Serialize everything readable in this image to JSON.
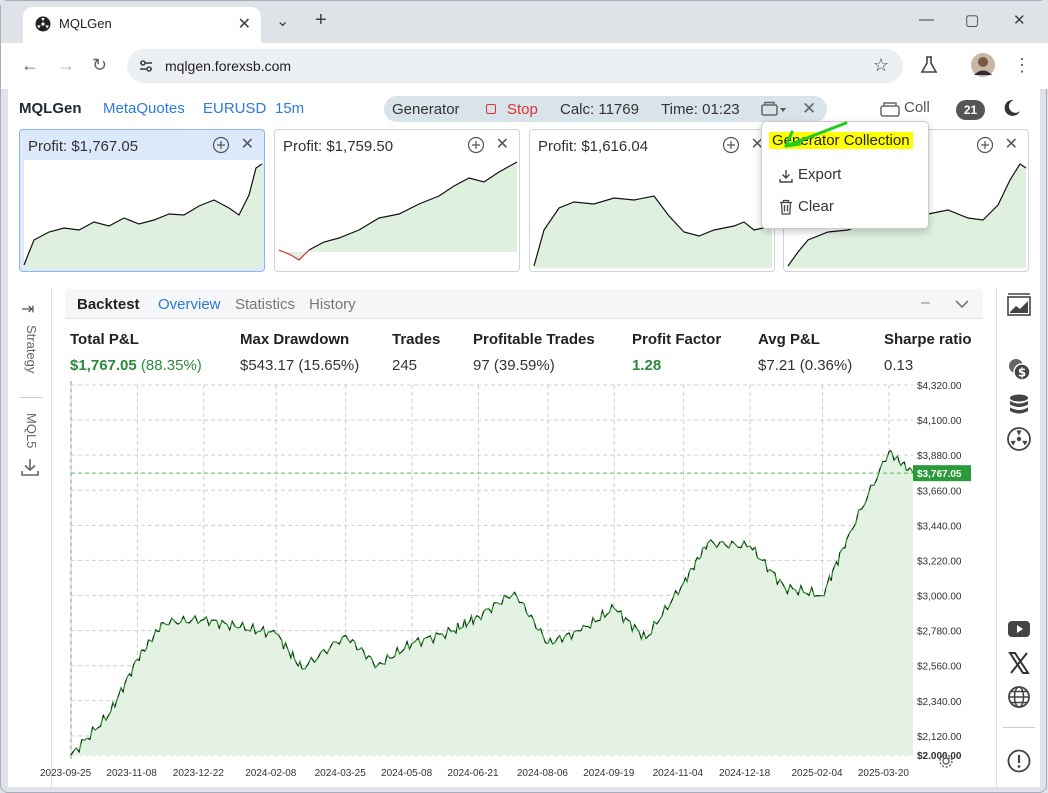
{
  "browser": {
    "tab_title": "MQLGen",
    "new_tab": "+",
    "url": "mqlgen.forexsb.com"
  },
  "app": {
    "brand": "MQLGen",
    "links": [
      "MetaQuotes",
      "EURUSD",
      "15m"
    ],
    "generator": {
      "label": "Generator",
      "stop": "Stop",
      "calc": "Calc: 11769",
      "time": "Time: 01:23"
    },
    "coll_label": "Coll",
    "coll_count": "21"
  },
  "cards": [
    {
      "title": "Profit: $1,767.05"
    },
    {
      "title": "Profit: $1,759.50"
    },
    {
      "title": "Profit: $1,616.04"
    },
    {
      "title": ""
    }
  ],
  "dropdown": {
    "header": "Generator Collection",
    "items": [
      "Export",
      "Clear"
    ]
  },
  "rails": {
    "left": [
      "Strategy",
      "MQL5"
    ]
  },
  "panel": {
    "title": "Backtest",
    "tabs": [
      "Overview",
      "Statistics",
      "History"
    ]
  },
  "stats": [
    {
      "label": "Total P&L",
      "value": "$1,767.05",
      "extra": "(88.35%)"
    },
    {
      "label": "Max Drawdown",
      "value": "$543.17 (15.65%)"
    },
    {
      "label": "Trades",
      "value": "245"
    },
    {
      "label": "Profitable Trades",
      "value": "97 (39.59%)"
    },
    {
      "label": "Profit Factor",
      "value": "1.28"
    },
    {
      "label": "Avg P&L",
      "value": "$7.21 (0.36%)"
    },
    {
      "label": "Sharpe ratio",
      "value": "0.13"
    }
  ],
  "chart_data": {
    "type": "line",
    "x_ticks": [
      "2023-09-25",
      "2023-11-08",
      "2023-12-22",
      "2024-02-08",
      "2024-03-25",
      "2024-05-08",
      "2024-06-21",
      "2024-08-06",
      "2024-09-19",
      "2024-11-04",
      "2024-12-18",
      "2025-02-04",
      "2025-03-20"
    ],
    "y_ticks": [
      "$4,320.00",
      "$4,100.00",
      "$3,880.00",
      "$3,660.00",
      "$3,440.00",
      "$3,220.00",
      "$3,000.00",
      "$2,780.00",
      "$2,560.00",
      "$2,340.00",
      "$2,120.00",
      "$2.000.00"
    ],
    "ylim": [
      2000,
      4320
    ],
    "current_label": "$3,767.05",
    "current_value": 3767.05,
    "x": [
      "2023-09-25",
      "2023-10-20",
      "2023-11-08",
      "2023-11-25",
      "2023-12-22",
      "2024-01-15",
      "2024-02-08",
      "2024-02-25",
      "2024-03-25",
      "2024-04-15",
      "2024-05-08",
      "2024-06-05",
      "2024-06-21",
      "2024-07-15",
      "2024-08-06",
      "2024-08-28",
      "2024-09-19",
      "2024-10-10",
      "2024-11-04",
      "2024-11-20",
      "2024-12-18",
      "2025-01-10",
      "2025-02-04",
      "2025-02-20",
      "2025-03-20",
      "2025-04-05"
    ],
    "values": [
      2000,
      2250,
      2600,
      2830,
      2850,
      2800,
      2760,
      2540,
      2750,
      2560,
      2700,
      2780,
      2870,
      3020,
      2700,
      2780,
      2920,
      2730,
      3080,
      3330,
      3310,
      3050,
      3000,
      3350,
      3900,
      3767
    ]
  }
}
